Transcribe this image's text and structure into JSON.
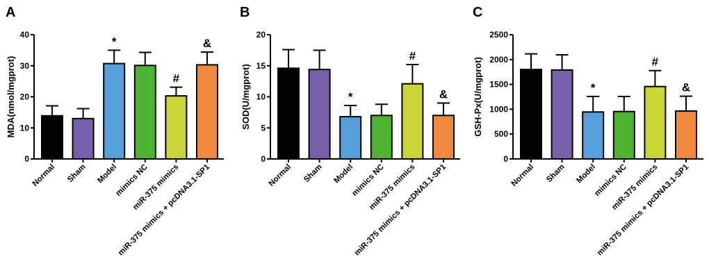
{
  "chart_data": [
    {
      "type": "bar",
      "panel": "A",
      "ylabel": "MDA(nmol/mgprot)",
      "ylim": [
        0,
        40
      ],
      "yticks": [
        0,
        10,
        20,
        30,
        40
      ],
      "categories": [
        "Normal",
        "Sham",
        "Model",
        "mimics NC",
        "miR-375 mimics",
        "miR-375 mimics + pcDNA3.1-SP1"
      ],
      "values": [
        13.9,
        13.0,
        30.7,
        30.1,
        20.3,
        30.3
      ],
      "error_upper": [
        17.1,
        16.2,
        35.0,
        34.3,
        23.1,
        34.4
      ],
      "annotations": [
        "",
        "",
        "*",
        "",
        "#",
        "&"
      ]
    },
    {
      "type": "bar",
      "panel": "B",
      "ylabel": "SOD(U/mgprot)",
      "ylim": [
        0,
        20
      ],
      "yticks": [
        0,
        5,
        10,
        15,
        20
      ],
      "categories": [
        "Normal",
        "Sham",
        "Model",
        "mimics NC",
        "miR-375 mimics",
        "miR-375 mimics + pcDNA3.1-SP1"
      ],
      "values": [
        14.6,
        14.4,
        6.8,
        7.0,
        12.1,
        7.0
      ],
      "error_upper": [
        17.6,
        17.5,
        8.6,
        8.8,
        15.2,
        9.0
      ],
      "annotations": [
        "",
        "",
        "*",
        "",
        "#",
        "&"
      ]
    },
    {
      "type": "bar",
      "panel": "C",
      "ylabel": "GSH-Px(U/mgprot)",
      "ylim": [
        0,
        2500
      ],
      "yticks": [
        0,
        500,
        1000,
        1500,
        2000,
        2500
      ],
      "categories": [
        "Normal",
        "Sham",
        "Model",
        "mimics NC",
        "miR-375 mimics",
        "miR-375 mimics + pcDNA3.1-SP1"
      ],
      "values": [
        1800,
        1790,
        945,
        954,
        1457,
        964
      ],
      "error_upper": [
        2114,
        2095,
        1257,
        1257,
        1778,
        1262
      ],
      "annotations": [
        "",
        "",
        "*",
        "",
        "#",
        "&"
      ]
    }
  ],
  "colors": [
    "#000000",
    "#7560a9",
    "#569fdb",
    "#4eb333",
    "#c8d535",
    "#ef8a3d"
  ]
}
